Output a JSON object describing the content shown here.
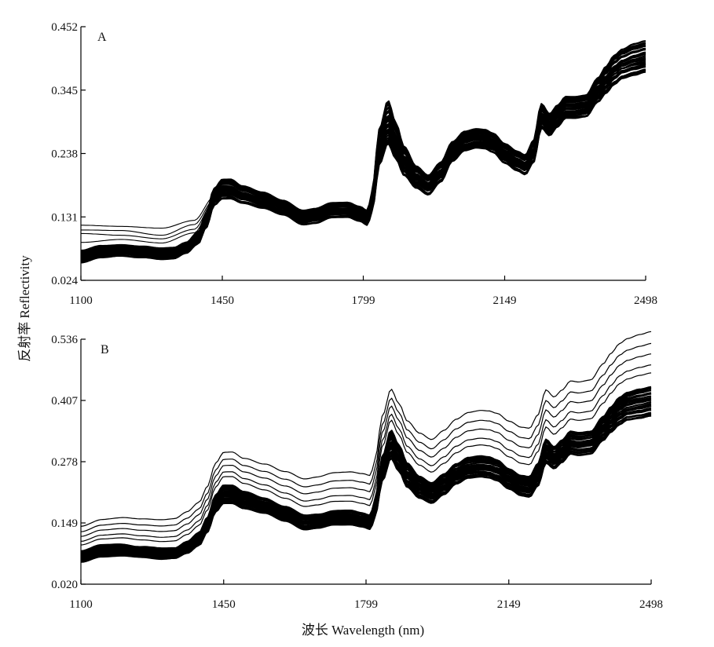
{
  "figure": {
    "ylabel": "反射率 Reflectivity",
    "xlabel": "波长 Wavelength (nm)"
  },
  "chart_data": [
    {
      "type": "line",
      "panel_label": "A",
      "xlim": [
        1100,
        2498
      ],
      "ylim": [
        0.024,
        0.452
      ],
      "xticks": [
        "1100",
        "1450",
        "1799",
        "2149",
        "2498"
      ],
      "yticks": [
        "0.452",
        "0.345",
        "0.238",
        "0.131",
        "0.024"
      ],
      "grid": false,
      "legend": "none",
      "line_color": "#000000",
      "curve_count": "many (dense bundle of sample spectra)",
      "typical_spectrum": {
        "x": [
          1100,
          1150,
          1200,
          1250,
          1300,
          1330,
          1360,
          1390,
          1410,
          1430,
          1450,
          1470,
          1500,
          1550,
          1600,
          1650,
          1680,
          1720,
          1760,
          1790,
          1810,
          1820,
          1840,
          1860,
          1880,
          1900,
          1930,
          1960,
          1990,
          2020,
          2050,
          2080,
          2100,
          2120,
          2150,
          2180,
          2200,
          2220,
          2240,
          2260,
          2280,
          2300,
          2320,
          2350,
          2380,
          2400,
          2420,
          2440,
          2470,
          2498
        ],
        "y": [
          0.063,
          0.072,
          0.075,
          0.072,
          0.068,
          0.069,
          0.078,
          0.095,
          0.125,
          0.165,
          0.178,
          0.178,
          0.168,
          0.158,
          0.146,
          0.13,
          0.133,
          0.142,
          0.142,
          0.135,
          0.128,
          0.155,
          0.25,
          0.29,
          0.258,
          0.225,
          0.198,
          0.184,
          0.205,
          0.24,
          0.258,
          0.263,
          0.262,
          0.256,
          0.238,
          0.225,
          0.218,
          0.24,
          0.3,
          0.285,
          0.3,
          0.315,
          0.315,
          0.318,
          0.345,
          0.362,
          0.378,
          0.388,
          0.395,
          0.4
        ]
      },
      "band_width_y": [
        0.01,
        0.01,
        0.009,
        0.009,
        0.009,
        0.009,
        0.009,
        0.01,
        0.012,
        0.014,
        0.016,
        0.016,
        0.014,
        0.013,
        0.012,
        0.012,
        0.012,
        0.012,
        0.012,
        0.012,
        0.012,
        0.016,
        0.03,
        0.036,
        0.03,
        0.024,
        0.018,
        0.016,
        0.016,
        0.016,
        0.016,
        0.016,
        0.016,
        0.016,
        0.016,
        0.016,
        0.016,
        0.018,
        0.02,
        0.018,
        0.018,
        0.018,
        0.018,
        0.018,
        0.02,
        0.022,
        0.024,
        0.024,
        0.026,
        0.026
      ],
      "outliers": [
        {
          "x": [
            1100,
            1200,
            1300,
            1380,
            1430
          ],
          "y": [
            0.117,
            0.115,
            0.112,
            0.125,
            0.165
          ]
        },
        {
          "x": [
            1100,
            1200,
            1300,
            1380,
            1430
          ],
          "y": [
            0.109,
            0.108,
            0.1,
            0.118,
            0.16
          ]
        },
        {
          "x": [
            1100,
            1200,
            1300,
            1380,
            1430
          ],
          "y": [
            0.103,
            0.1,
            0.094,
            0.11,
            0.158
          ]
        },
        {
          "x": [
            1100,
            1200,
            1300,
            1380,
            1430
          ],
          "y": [
            0.088,
            0.093,
            0.087,
            0.104,
            0.155
          ]
        }
      ]
    },
    {
      "type": "line",
      "panel_label": "B",
      "xlim": [
        1100,
        2498
      ],
      "ylim": [
        0.02,
        0.536
      ],
      "xticks": [
        "1100",
        "1450",
        "1799",
        "2149",
        "2498"
      ],
      "yticks": [
        "0.536",
        "0.407",
        "0.278",
        "0.149",
        "0.020"
      ],
      "grid": false,
      "legend": "none",
      "line_color": "#000000",
      "curve_count": "many (dense bundle of sample spectra)",
      "typical_spectrum": {
        "x": [
          1100,
          1150,
          1200,
          1250,
          1300,
          1330,
          1360,
          1390,
          1410,
          1430,
          1450,
          1470,
          1500,
          1550,
          1600,
          1650,
          1680,
          1720,
          1760,
          1790,
          1810,
          1820,
          1840,
          1860,
          1880,
          1900,
          1930,
          1960,
          1990,
          2020,
          2050,
          2080,
          2100,
          2120,
          2150,
          2180,
          2200,
          2220,
          2240,
          2260,
          2280,
          2300,
          2320,
          2350,
          2380,
          2400,
          2420,
          2440,
          2470,
          2498
        ],
        "y": [
          0.078,
          0.09,
          0.092,
          0.088,
          0.084,
          0.085,
          0.097,
          0.115,
          0.145,
          0.19,
          0.21,
          0.21,
          0.197,
          0.185,
          0.168,
          0.15,
          0.153,
          0.16,
          0.16,
          0.155,
          0.15,
          0.178,
          0.265,
          0.315,
          0.285,
          0.25,
          0.225,
          0.212,
          0.23,
          0.252,
          0.265,
          0.268,
          0.266,
          0.26,
          0.242,
          0.228,
          0.225,
          0.25,
          0.3,
          0.286,
          0.3,
          0.318,
          0.315,
          0.318,
          0.348,
          0.368,
          0.385,
          0.395,
          0.4,
          0.405
        ]
      },
      "band_width_y": [
        0.012,
        0.012,
        0.012,
        0.011,
        0.011,
        0.011,
        0.012,
        0.013,
        0.015,
        0.018,
        0.02,
        0.02,
        0.018,
        0.016,
        0.015,
        0.015,
        0.015,
        0.015,
        0.015,
        0.015,
        0.015,
        0.018,
        0.026,
        0.03,
        0.028,
        0.026,
        0.024,
        0.022,
        0.022,
        0.022,
        0.022,
        0.022,
        0.022,
        0.022,
        0.022,
        0.022,
        0.022,
        0.024,
        0.026,
        0.024,
        0.024,
        0.024,
        0.024,
        0.024,
        0.026,
        0.028,
        0.03,
        0.03,
        0.032,
        0.032
      ],
      "upper_curves_offset": [
        0.028,
        0.045,
        0.068,
        0.09,
        0.115
      ]
    }
  ]
}
